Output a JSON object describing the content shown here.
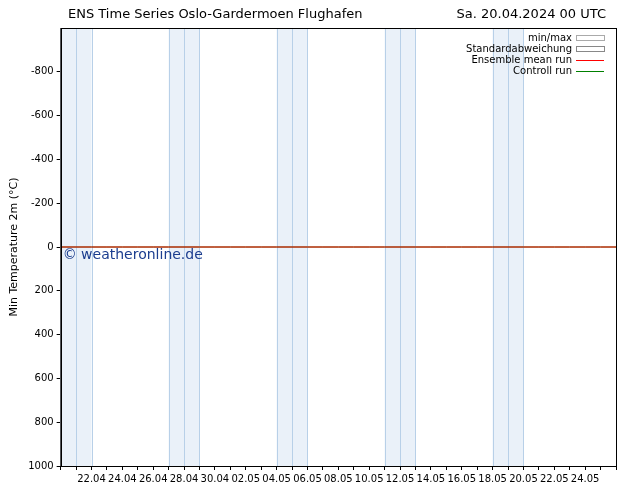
{
  "chart_data": {
    "type": "line",
    "title": "ENS Time Series Oslo-Gardermoen Flughafen",
    "subtitle": "Sa. 20.04.2024 00 UTC",
    "y_label": "Min Temperature 2m (°C)",
    "watermark": "© weatheronline.de",
    "categories": [
      null,
      null,
      "22.04",
      null,
      "24.04",
      null,
      "26.04",
      null,
      "28.04",
      null,
      "30.04",
      null,
      "02.05",
      null,
      "04.05",
      null,
      "06.05",
      null,
      "08.05",
      null,
      "10.05",
      null,
      "12.05",
      null,
      "14.05",
      null,
      "16.05",
      null,
      "18.05",
      null,
      "20.05",
      null,
      "22.05",
      null,
      "24.05",
      null,
      null
    ],
    "series": [
      {
        "name": "min/max",
        "type": "band",
        "color": "#aaaaaa",
        "values": [
          null,
          null,
          null,
          null,
          null,
          null,
          null,
          null,
          null,
          null,
          null,
          null,
          null,
          null,
          null,
          null,
          null,
          null,
          null,
          null,
          null,
          null,
          null,
          null,
          null,
          null,
          null,
          null,
          null,
          null,
          null,
          null,
          null,
          null,
          null,
          null,
          null
        ]
      },
      {
        "name": "Standardabweichung",
        "type": "band",
        "color": "#888888",
        "values": [
          null,
          null,
          null,
          null,
          null,
          null,
          null,
          null,
          null,
          null,
          null,
          null,
          null,
          null,
          null,
          null,
          null,
          null,
          null,
          null,
          null,
          null,
          null,
          null,
          null,
          null,
          null,
          null,
          null,
          null,
          null,
          null,
          null,
          null,
          null,
          null,
          null
        ]
      },
      {
        "name": "Ensemble mean run",
        "type": "line",
        "color": "#ff0000",
        "values": [
          0,
          0,
          0,
          0,
          0,
          0,
          0,
          0,
          0,
          0,
          0,
          0,
          0,
          0,
          0,
          0,
          0,
          0,
          0,
          0,
          0,
          0,
          0,
          0,
          0,
          0,
          0,
          0,
          0,
          0,
          0,
          0,
          0,
          0,
          0,
          0,
          0
        ]
      },
      {
        "name": "Controll run",
        "type": "line",
        "color": "#008000",
        "values": [
          0,
          0,
          0,
          0,
          0,
          0,
          0,
          0,
          0,
          0,
          0,
          0,
          0,
          0,
          0,
          0,
          0,
          0,
          0,
          0,
          0,
          0,
          0,
          0,
          0,
          0,
          0,
          0,
          0,
          0,
          0,
          0,
          0,
          0,
          0,
          0,
          0
        ]
      }
    ],
    "ylim": [
      1000,
      -1000
    ],
    "yticks": [
      -800,
      -600,
      -400,
      -200,
      0,
      200,
      400,
      600,
      800,
      1000
    ],
    "grid": false,
    "legend": "upper right",
    "weekend_shading": [
      [
        0,
        2
      ],
      [
        7,
        9
      ],
      [
        14,
        16
      ],
      [
        21,
        23
      ],
      [
        28,
        30
      ]
    ]
  }
}
